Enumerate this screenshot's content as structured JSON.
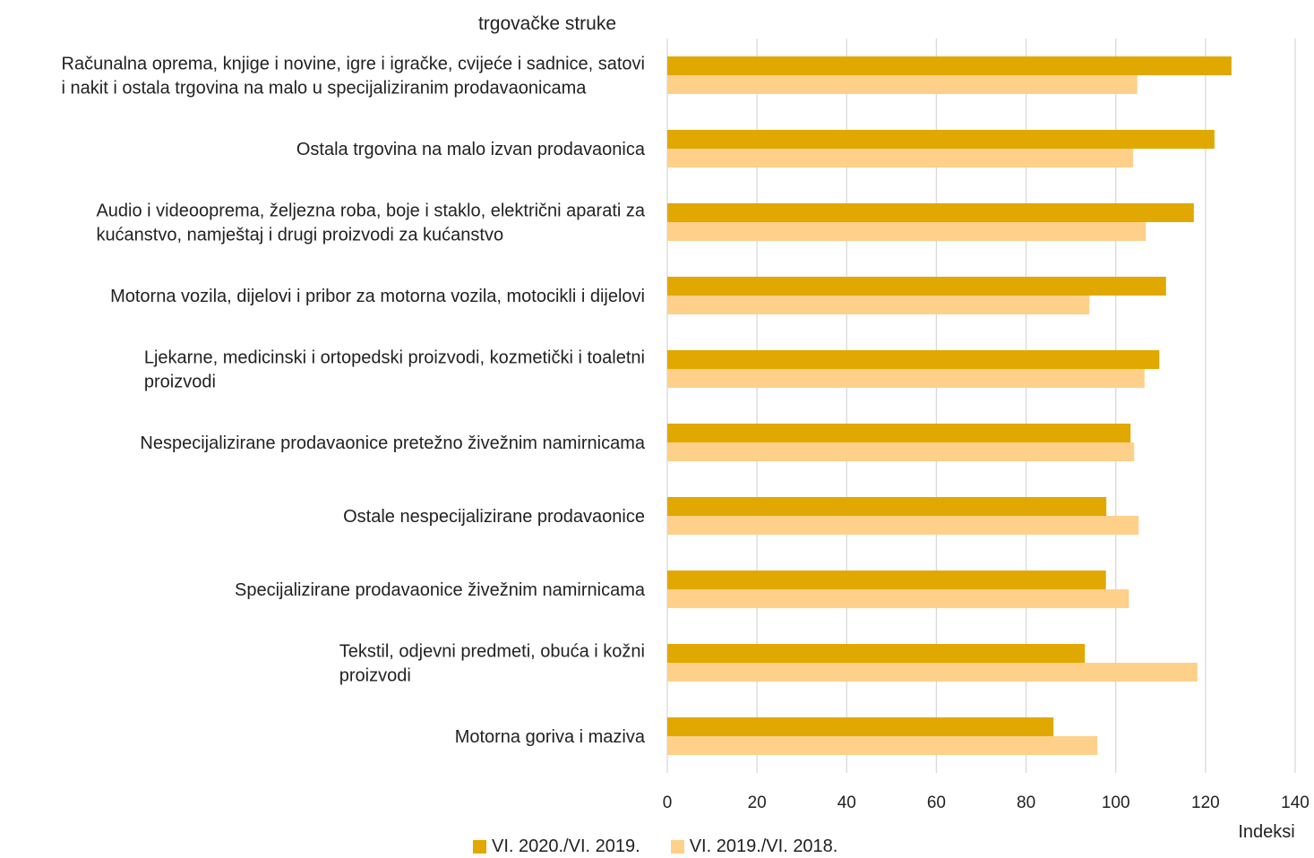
{
  "chart_data": {
    "type": "bar",
    "orientation": "horizontal",
    "title": "trgovačke struke",
    "xlabel": "Indeksi",
    "xlim": [
      0,
      140
    ],
    "xticks": [
      "0",
      "20",
      "40",
      "60",
      "80",
      "100",
      "120",
      "140"
    ],
    "grid": true,
    "legend_position": "bottom",
    "categories": [
      [
        "Računalna oprema, knjige i novine, igre i igračke, cvijeće i sadnice,  satovi",
        "i nakit i ostala trgovina na malo u specijaliziranim prodavaonicama"
      ],
      [
        "Ostala trgovina na malo izvan prodavaonica"
      ],
      [
        "Audio i videooprema, željezna roba, boje i staklo, električni aparati za",
        "kućanstvo, namještaj i drugi proizvodi za kućanstvo"
      ],
      [
        "Motorna vozila, dijelovi i pribor za motorna vozila, motocikli i dijelovi"
      ],
      [
        "Ljekarne, medicinski i ortopedski proizvodi, kozmetički i toaletni",
        "proizvodi"
      ],
      [
        "Nespecijalizirane prodavaonice pretežno živežnim namirnicama"
      ],
      [
        "Ostale nespecijalizirane prodavaonice"
      ],
      [
        "Specijalizirane prodavaonice živežnim namirnicama"
      ],
      [
        "Tekstil, odjevni predmeti, obuća i kožni",
        "proizvodi"
      ],
      [
        "Motorna goriva i maziva"
      ]
    ],
    "series": [
      {
        "name": "VI. 2020./VI. 2019.",
        "color": "#E0A800",
        "values": [
          125.8,
          122.0,
          117.4,
          111.2,
          109.7,
          103.3,
          97.9,
          97.8,
          93.1,
          86.1
        ]
      },
      {
        "name": "VI. 2019./VI. 2018.",
        "color": "#FFD08A",
        "values": [
          104.8,
          103.9,
          106.7,
          94.1,
          106.4,
          104.1,
          105.1,
          102.9,
          118.2,
          95.9
        ]
      }
    ]
  }
}
